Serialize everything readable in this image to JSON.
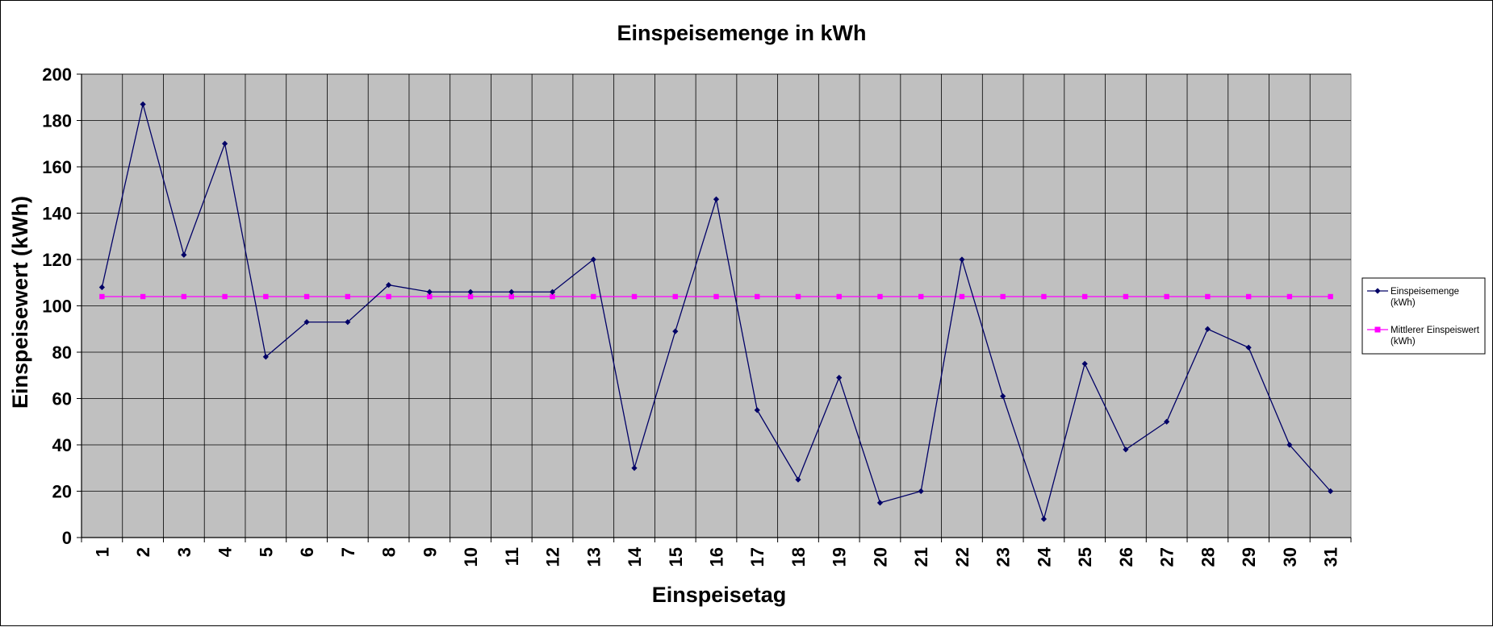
{
  "chart_data": {
    "type": "line",
    "title": "Einspeisemenge in kWh",
    "xlabel": "Einspeisetag",
    "ylabel": "Einspeisewert  (kWh)",
    "x": [
      1,
      2,
      3,
      4,
      5,
      6,
      7,
      8,
      9,
      10,
      11,
      12,
      13,
      14,
      15,
      16,
      17,
      18,
      19,
      20,
      21,
      22,
      23,
      24,
      25,
      26,
      27,
      28,
      29,
      30,
      31
    ],
    "ylim": [
      0,
      200
    ],
    "yticks": [
      0,
      20,
      40,
      60,
      80,
      100,
      120,
      140,
      160,
      180,
      200
    ],
    "grid": true,
    "legend_position": "right",
    "series": [
      {
        "name_line1": "Einspeisemenge",
        "name_line2": "(kWh)",
        "color": "#000066",
        "marker": "diamond",
        "values": [
          108,
          187,
          122,
          170,
          78,
          93,
          93,
          109,
          106,
          106,
          106,
          106,
          120,
          30,
          89,
          146,
          55,
          25,
          69,
          15,
          20,
          120,
          61,
          8,
          75,
          38,
          50,
          90,
          82,
          40,
          20
        ]
      },
      {
        "name_line1": "Mittlerer Einspeiswert",
        "name_line2": "(kWh)",
        "color": "#ff00ff",
        "marker": "square",
        "values": [
          104,
          104,
          104,
          104,
          104,
          104,
          104,
          104,
          104,
          104,
          104,
          104,
          104,
          104,
          104,
          104,
          104,
          104,
          104,
          104,
          104,
          104,
          104,
          104,
          104,
          104,
          104,
          104,
          104,
          104,
          104
        ]
      }
    ],
    "plot_background": "#c0c0c0"
  }
}
